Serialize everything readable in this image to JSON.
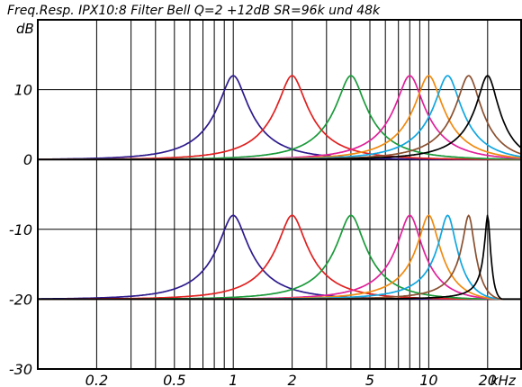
{
  "chart_data": {
    "type": "line",
    "title": "Freq.Resp. IPX10:8  Filter Bell Q=2  +12dB SR=96k und 48k",
    "ylabel": "dB",
    "xlabel": "kHz",
    "xscale": "log",
    "xlim": [
      0.1,
      30
    ],
    "ylim": [
      -30,
      20
    ],
    "x_tick_labels": [
      {
        "v": 0.2,
        "label": "0.2"
      },
      {
        "v": 0.5,
        "label": "0.5"
      },
      {
        "v": 1,
        "label": "1"
      },
      {
        "v": 2,
        "label": "2"
      },
      {
        "v": 5,
        "label": "5"
      },
      {
        "v": 10,
        "label": "10"
      },
      {
        "v": 20,
        "label": "20"
      }
    ],
    "y_tick_labels": [
      {
        "v": 10,
        "label": "10"
      },
      {
        "v": 0,
        "label": "0"
      },
      {
        "v": -10,
        "label": "-10"
      },
      {
        "v": -20,
        "label": "-20"
      },
      {
        "v": -30,
        "label": "-30"
      }
    ],
    "grid": true,
    "filter": {
      "type": "bell",
      "q": 2,
      "gain_db": 12
    },
    "series": [
      {
        "group": "SR=96k",
        "offset_db": 0,
        "fs_khz": 96,
        "center_khz": 1,
        "color": "#2e1a8c"
      },
      {
        "group": "SR=96k",
        "offset_db": 0,
        "fs_khz": 96,
        "center_khz": 2,
        "color": "#e02020"
      },
      {
        "group": "SR=96k",
        "offset_db": 0,
        "fs_khz": 96,
        "center_khz": 4,
        "color": "#1a9a3a"
      },
      {
        "group": "SR=96k",
        "offset_db": 0,
        "fs_khz": 96,
        "center_khz": 8,
        "color": "#e0209a"
      },
      {
        "group": "SR=96k",
        "offset_db": 0,
        "fs_khz": 96,
        "center_khz": 10,
        "color": "#f08a10"
      },
      {
        "group": "SR=96k",
        "offset_db": 0,
        "fs_khz": 96,
        "center_khz": 12.5,
        "color": "#10a6e0"
      },
      {
        "group": "SR=96k",
        "offset_db": 0,
        "fs_khz": 96,
        "center_khz": 16,
        "color": "#8a5030"
      },
      {
        "group": "SR=96k",
        "offset_db": 0,
        "fs_khz": 96,
        "center_khz": 20,
        "color": "#000000"
      },
      {
        "group": "SR=48k",
        "offset_db": -20,
        "fs_khz": 48,
        "center_khz": 1,
        "color": "#2e1a8c"
      },
      {
        "group": "SR=48k",
        "offset_db": -20,
        "fs_khz": 48,
        "center_khz": 2,
        "color": "#e02020"
      },
      {
        "group": "SR=48k",
        "offset_db": -20,
        "fs_khz": 48,
        "center_khz": 4,
        "color": "#1a9a3a"
      },
      {
        "group": "SR=48k",
        "offset_db": -20,
        "fs_khz": 48,
        "center_khz": 8,
        "color": "#e0209a"
      },
      {
        "group": "SR=48k",
        "offset_db": -20,
        "fs_khz": 48,
        "center_khz": 10,
        "color": "#f08a10"
      },
      {
        "group": "SR=48k",
        "offset_db": -20,
        "fs_khz": 48,
        "center_khz": 12.5,
        "color": "#10a6e0"
      },
      {
        "group": "SR=48k",
        "offset_db": -20,
        "fs_khz": 48,
        "center_khz": 16,
        "color": "#8a5030"
      },
      {
        "group": "SR=48k",
        "offset_db": -20,
        "fs_khz": 48,
        "center_khz": 20,
        "color": "#000000"
      }
    ]
  }
}
